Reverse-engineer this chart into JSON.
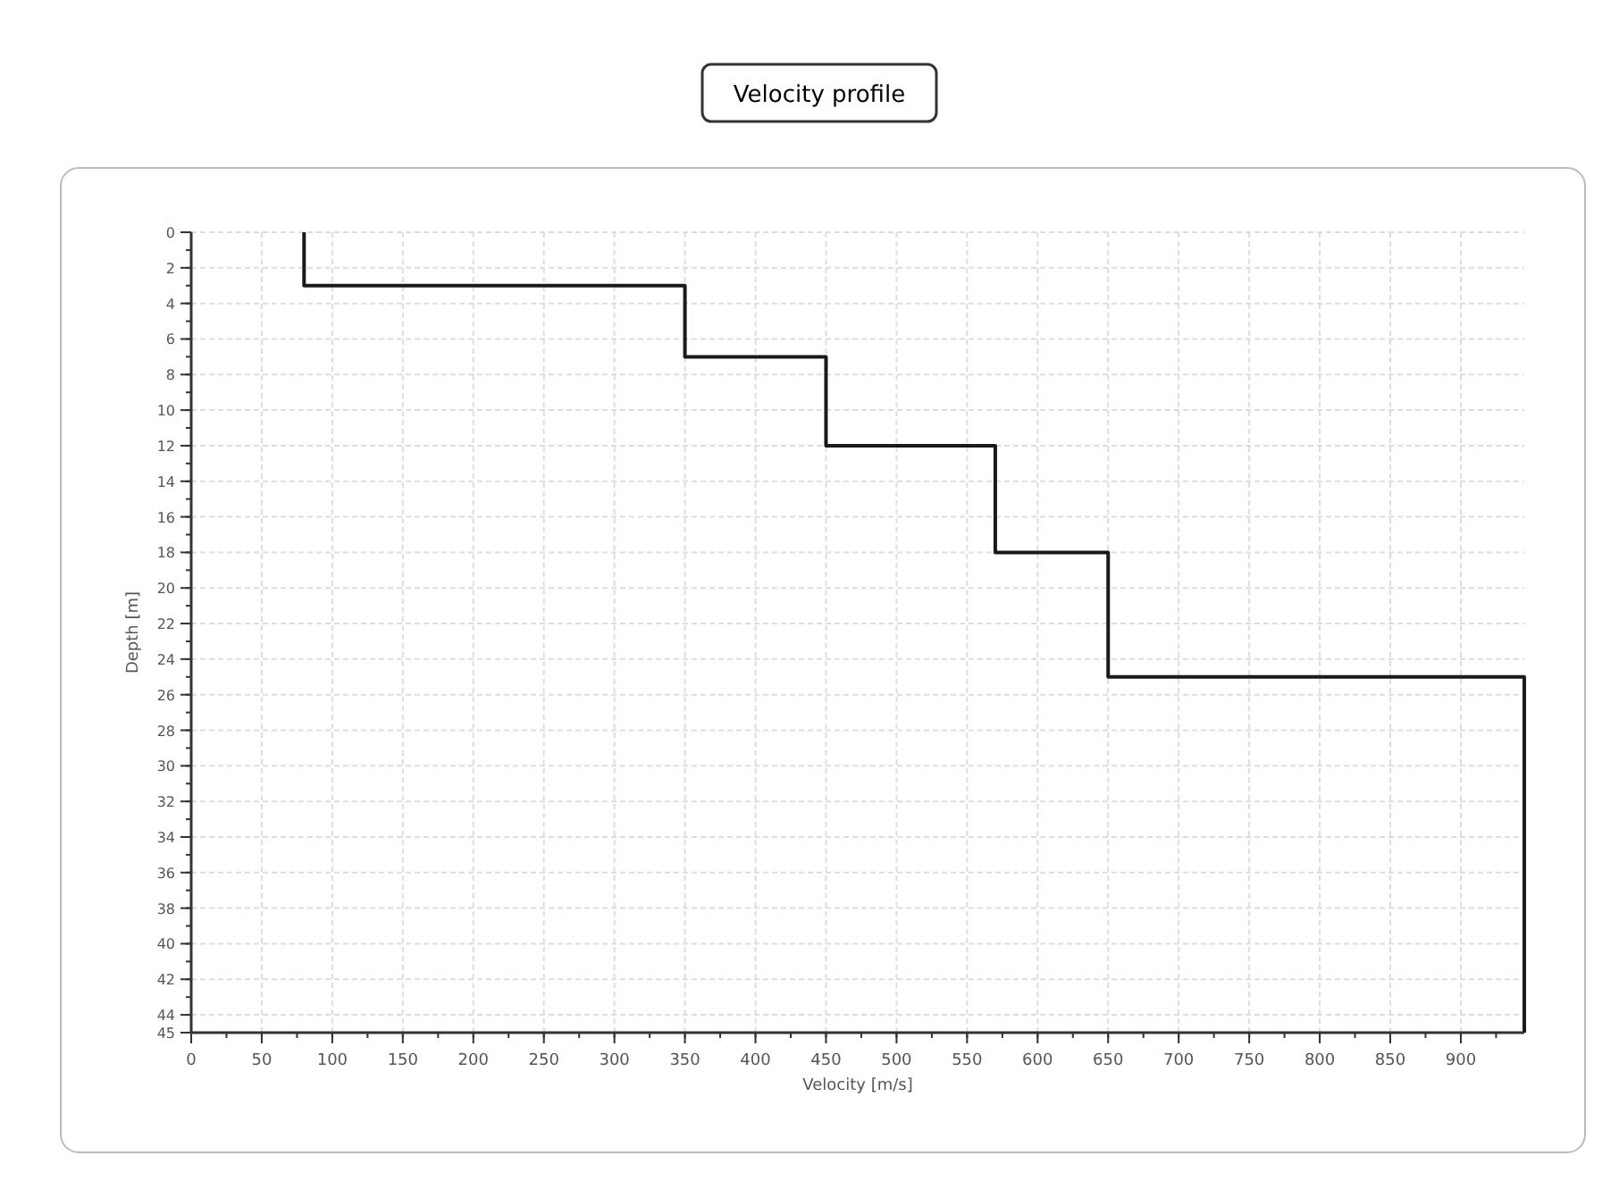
{
  "chart_data": {
    "type": "line",
    "title": "Velocity profile",
    "xlabel": "Velocity [m/s]",
    "ylabel": "Depth [m]",
    "xlim": [
      0,
      945
    ],
    "xticks": [
      0,
      50,
      100,
      150,
      200,
      250,
      300,
      350,
      400,
      450,
      500,
      550,
      600,
      650,
      700,
      750,
      800,
      850,
      900
    ],
    "ylim": [
      45,
      0
    ],
    "yticks": [
      0,
      2,
      4,
      6,
      8,
      10,
      12,
      14,
      16,
      18,
      20,
      22,
      24,
      26,
      28,
      30,
      32,
      34,
      36,
      38,
      40,
      42,
      44,
      45
    ],
    "grid": true,
    "marker": "none",
    "line_style": "solid",
    "series": [
      {
        "color": "#1a1a1a",
        "x": [
          80,
          80,
          350,
          350,
          450,
          450,
          570,
          570,
          650,
          650,
          945,
          945
        ],
        "values": [
          0,
          3,
          3,
          7,
          7,
          12,
          12,
          18,
          18,
          25,
          25,
          45
        ]
      }
    ]
  }
}
